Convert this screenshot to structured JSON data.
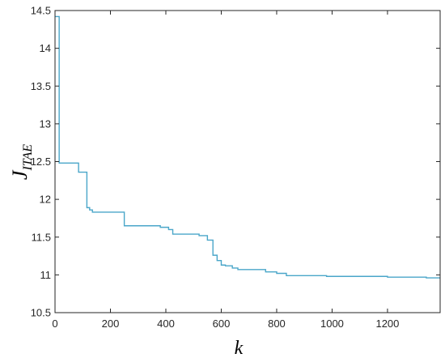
{
  "chart_data": {
    "type": "line",
    "title": "",
    "xlabel": "k",
    "ylabel_main": "J",
    "ylabel_sub": "ITAE",
    "xlim": [
      0,
      1390
    ],
    "ylim": [
      10.5,
      14.5
    ],
    "xticks": [
      0,
      200,
      400,
      600,
      800,
      1000,
      1200
    ],
    "yticks": [
      10.5,
      11,
      11.5,
      12,
      12.5,
      13,
      13.5,
      14,
      14.5
    ],
    "xtick_labels": [
      "0",
      "200",
      "400",
      "600",
      "800",
      "1000",
      "1200"
    ],
    "ytick_labels": [
      "10.5",
      "11",
      "11.5",
      "12",
      "12.5",
      "13",
      "13.5",
      "14",
      "14.5"
    ],
    "grid": false,
    "line_color": "#4aa6c9",
    "step": true,
    "series": [
      {
        "x": [
          0,
          15,
          85,
          115,
          125,
          135,
          250,
          380,
          410,
          425,
          520,
          550,
          570,
          585,
          600,
          615,
          640,
          660,
          700,
          760,
          800,
          835,
          980,
          1200,
          1340,
          1390
        ],
        "y": [
          14.42,
          12.48,
          12.36,
          11.89,
          11.86,
          11.83,
          11.65,
          11.63,
          11.6,
          11.54,
          11.52,
          11.46,
          11.26,
          11.19,
          11.13,
          11.12,
          11.09,
          11.07,
          11.07,
          11.04,
          11.02,
          10.99,
          10.98,
          10.97,
          10.96,
          10.96
        ]
      }
    ]
  }
}
